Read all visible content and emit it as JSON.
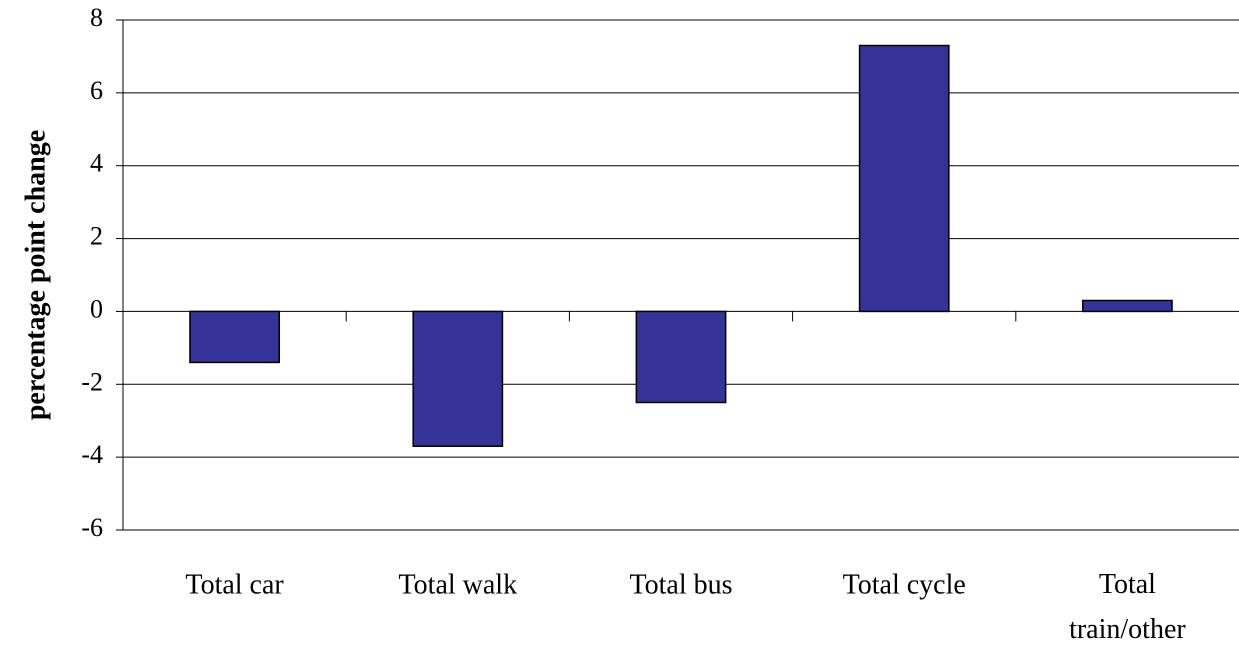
{
  "chart_data": {
    "type": "bar",
    "y_axis_label": "percentage point change",
    "categories": [
      "Total car",
      "Total walk",
      "Total bus",
      "Total cycle",
      "Total train/other"
    ],
    "values": [
      -1.4,
      -3.7,
      -2.5,
      7.3,
      0.3
    ],
    "color": "#333399",
    "ylim": [
      -6,
      8
    ],
    "yticks": [
      -6,
      -4,
      -2,
      0,
      2,
      4,
      6,
      8
    ],
    "grid": true
  }
}
